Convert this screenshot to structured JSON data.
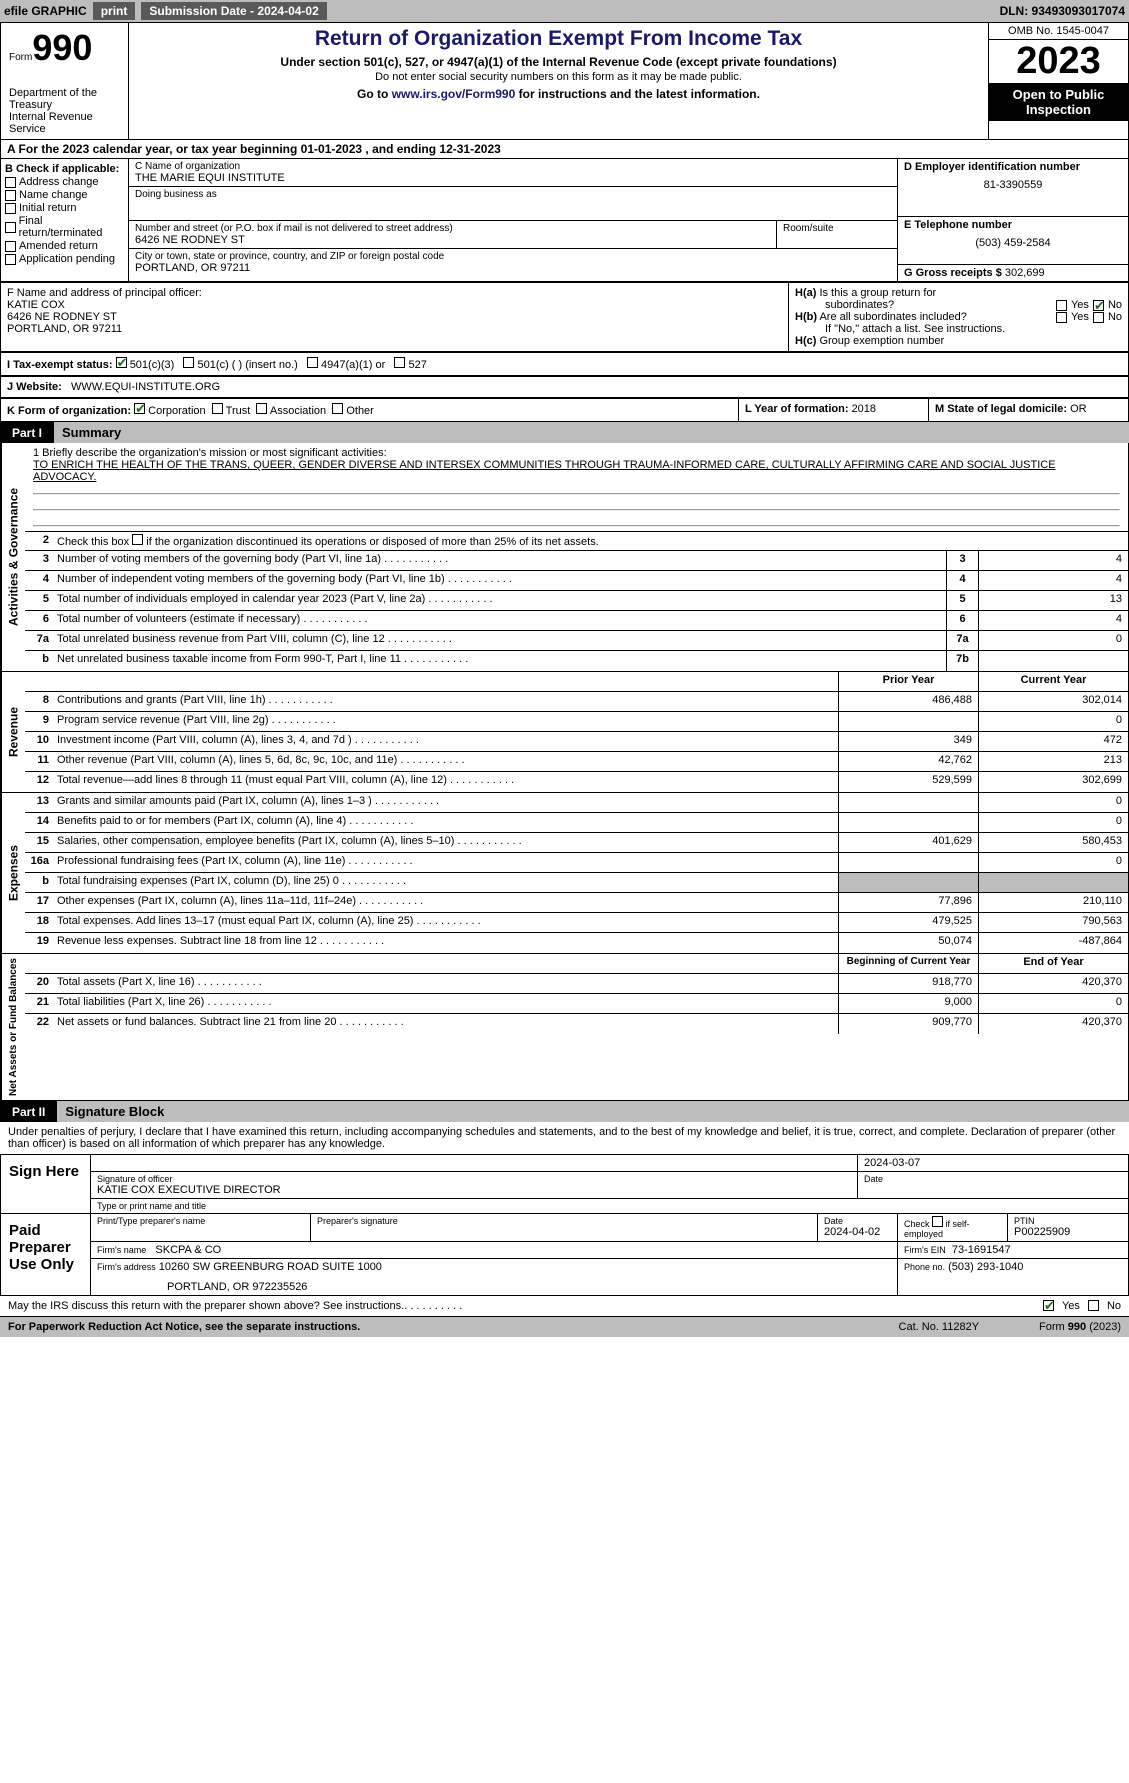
{
  "topbar": {
    "efile": "efile GRAPHIC",
    "print": "print",
    "subdate_lbl": "Submission Date - ",
    "subdate": "2024-04-02",
    "dln": "DLN: 93493093017074"
  },
  "header": {
    "form_word": "Form",
    "form_num": "990",
    "dept": "Department of the Treasury\nInternal Revenue Service",
    "title": "Return of Organization Exempt From Income Tax",
    "sub": "Under section 501(c), 527, or 4947(a)(1) of the Internal Revenue Code (except private foundations)",
    "sub2": "Do not enter social security numbers on this form as it may be made public.",
    "sub3_pre": "Go to ",
    "sub3_link": "www.irs.gov/Form990",
    "sub3_post": " for instructions and the latest information.",
    "omb": "OMB No. 1545-0047",
    "year": "2023",
    "open": "Open to Public Inspection"
  },
  "period": {
    "a": "A For the 2023 calendar year, or tax year beginning ",
    "begin": "01-01-2023",
    "mid": " , and ending ",
    "end": "12-31-2023"
  },
  "checkB": {
    "lbl": "B Check if applicable:",
    "items": [
      "Address change",
      "Name change",
      "Initial return",
      "Final return/terminated",
      "Amended return",
      "Application pending"
    ]
  },
  "c": {
    "name_lbl": "C Name of organization",
    "name": "THE MARIE EQUI INSTITUTE",
    "dba_lbl": "Doing business as",
    "street_lbl": "Number and street (or P.O. box if mail is not delivered to street address)",
    "street": "6426 NE RODNEY ST",
    "suite_lbl": "Room/suite",
    "city_lbl": "City or town, state or province, country, and ZIP or foreign postal code",
    "city": "PORTLAND, OR  97211"
  },
  "d": {
    "ein_lbl": "D Employer identification number",
    "ein": "81-3390559",
    "phone_lbl": "E Telephone number",
    "phone": "(503) 459-2584",
    "gross_lbl": "G Gross receipts $ ",
    "gross": "302,699"
  },
  "f": {
    "lbl": "F  Name and address of principal officer:",
    "name": "KATIE COX",
    "street": "6426 NE RODNEY ST",
    "city": "PORTLAND, OR  97211"
  },
  "h": {
    "a_lbl": "H(a)  Is this a group return for",
    "a_lbl2": "subordinates?",
    "b_lbl": "H(b)  Are all subordinates included?",
    "b_note": "If \"No,\" attach a list. See instructions.",
    "c_lbl": "H(c)  Group exemption number",
    "yes": "Yes",
    "no": "No"
  },
  "i": {
    "lbl": "I  Tax-exempt status:",
    "opts": [
      "501(c)(3)",
      "501(c) (  ) (insert no.)",
      "4947(a)(1) or",
      "527"
    ]
  },
  "j": {
    "lbl": "J  Website:",
    "val": "WWW.EQUI-INSTITUTE.ORG"
  },
  "k": {
    "lbl": "K Form of organization:",
    "opts": [
      "Corporation",
      "Trust",
      "Association",
      "Other"
    ]
  },
  "l": {
    "lbl": "L Year of formation: ",
    "val": "2018"
  },
  "m": {
    "lbl": "M State of legal domicile: ",
    "val": "OR"
  },
  "part1": {
    "num": "Part I",
    "title": "Summary"
  },
  "part2": {
    "num": "Part II",
    "title": "Signature Block"
  },
  "mission": {
    "lbl": "1  Briefly describe the organization's mission or most significant activities:",
    "text": "TO ENRICH THE HEALTH OF THE TRANS, QUEER, GENDER DIVERSE AND INTERSEX COMMUNITIES THROUGH TRAUMA-INFORMED CARE, CULTURALLY AFFIRMING CARE AND SOCIAL JUSTICE ADVOCACY."
  },
  "line2": "Check this box      if the organization discontinued its operations or disposed of more than 25% of its net assets.",
  "gov_rows": [
    {
      "n": "3",
      "t": "Number of voting members of the governing body (Part VI, line 1a)",
      "c": "3",
      "v": "4"
    },
    {
      "n": "4",
      "t": "Number of independent voting members of the governing body (Part VI, line 1b)",
      "c": "4",
      "v": "4"
    },
    {
      "n": "5",
      "t": "Total number of individuals employed in calendar year 2023 (Part V, line 2a)",
      "c": "5",
      "v": "13"
    },
    {
      "n": "6",
      "t": "Total number of volunteers (estimate if necessary)",
      "c": "6",
      "v": "4"
    },
    {
      "n": "7a",
      "t": "Total unrelated business revenue from Part VIII, column (C), line 12",
      "c": "7a",
      "v": "0"
    },
    {
      "n": "b",
      "t": "Net unrelated business taxable income from Form 990-T, Part I, line 11",
      "c": "7b",
      "v": ""
    }
  ],
  "rev_hdr": {
    "prior": "Prior Year",
    "current": "Current Year"
  },
  "rev_rows": [
    {
      "n": "8",
      "t": "Contributions and grants (Part VIII, line 1h)",
      "p": "486,488",
      "c": "302,014"
    },
    {
      "n": "9",
      "t": "Program service revenue (Part VIII, line 2g)",
      "p": "",
      "c": "0"
    },
    {
      "n": "10",
      "t": "Investment income (Part VIII, column (A), lines 3, 4, and 7d )",
      "p": "349",
      "c": "472"
    },
    {
      "n": "11",
      "t": "Other revenue (Part VIII, column (A), lines 5, 6d, 8c, 9c, 10c, and 11e)",
      "p": "42,762",
      "c": "213"
    },
    {
      "n": "12",
      "t": "Total revenue—add lines 8 through 11 (must equal Part VIII, column (A), line 12)",
      "p": "529,599",
      "c": "302,699"
    }
  ],
  "exp_rows": [
    {
      "n": "13",
      "t": "Grants and similar amounts paid (Part IX, column (A), lines 1–3 )",
      "p": "",
      "c": "0"
    },
    {
      "n": "14",
      "t": "Benefits paid to or for members (Part IX, column (A), line 4)",
      "p": "",
      "c": "0"
    },
    {
      "n": "15",
      "t": "Salaries, other compensation, employee benefits (Part IX, column (A), lines 5–10)",
      "p": "401,629",
      "c": "580,453"
    },
    {
      "n": "16a",
      "t": "Professional fundraising fees (Part IX, column (A), line 11e)",
      "p": "",
      "c": "0"
    },
    {
      "n": "b",
      "t": "Total fundraising expenses (Part IX, column (D), line 25) 0",
      "p": "shade",
      "c": "shade"
    },
    {
      "n": "17",
      "t": "Other expenses (Part IX, column (A), lines 11a–11d, 11f–24e)",
      "p": "77,896",
      "c": "210,110"
    },
    {
      "n": "18",
      "t": "Total expenses. Add lines 13–17 (must equal Part IX, column (A), line 25)",
      "p": "479,525",
      "c": "790,563"
    },
    {
      "n": "19",
      "t": "Revenue less expenses. Subtract line 18 from line 12",
      "p": "50,074",
      "c": "-487,864"
    }
  ],
  "net_hdr": {
    "begin": "Beginning of Current Year",
    "end": "End of Year"
  },
  "net_rows": [
    {
      "n": "20",
      "t": "Total assets (Part X, line 16)",
      "p": "918,770",
      "c": "420,370"
    },
    {
      "n": "21",
      "t": "Total liabilities (Part X, line 26)",
      "p": "9,000",
      "c": "0"
    },
    {
      "n": "22",
      "t": "Net assets or fund balances. Subtract line 21 from line 20",
      "p": "909,770",
      "c": "420,370"
    }
  ],
  "vlabels": {
    "gov": "Activities & Governance",
    "rev": "Revenue",
    "exp": "Expenses",
    "net": "Net Assets or Fund Balances"
  },
  "sig_intro": "Under penalties of perjury, I declare that I have examined this return, including accompanying schedules and statements, and to the best of my knowledge and belief, it is true, correct, and complete. Declaration of preparer (other than officer) is based on all information of which preparer has any knowledge.",
  "sign": {
    "here": "Sign Here",
    "sig_lbl": "Signature of officer",
    "date_lbl": "Date",
    "date": "2024-03-07",
    "name": "KATIE COX  EXECUTIVE DIRECTOR",
    "name_lbl": "Type or print name and title"
  },
  "paid": {
    "lbl": "Paid Preparer Use Only",
    "prep_name_lbl": "Print/Type preparer's name",
    "prep_sig_lbl": "Preparer's signature",
    "date_lbl": "Date",
    "date": "2024-04-02",
    "check_lbl": "Check       if self-employed",
    "ptin_lbl": "PTIN",
    "ptin": "P00225909",
    "firm_lbl": "Firm's name",
    "firm": "SKCPA & CO",
    "firm_ein_lbl": "Firm's EIN",
    "firm_ein": "73-1691547",
    "addr_lbl": "Firm's address",
    "addr": "10260 SW GREENBURG ROAD SUITE 1000",
    "addr2": "PORTLAND, OR  972235526",
    "phone_lbl": "Phone no.",
    "phone": "(503) 293-1040"
  },
  "discuss": {
    "text": "May the IRS discuss this return with the preparer shown above? See instructions.",
    "yes": "Yes",
    "no": "No"
  },
  "footer": {
    "left": "For Paperwork Reduction Act Notice, see the separate instructions.",
    "cat": "Cat. No. 11282Y",
    "right": "Form 990 (2023)"
  }
}
